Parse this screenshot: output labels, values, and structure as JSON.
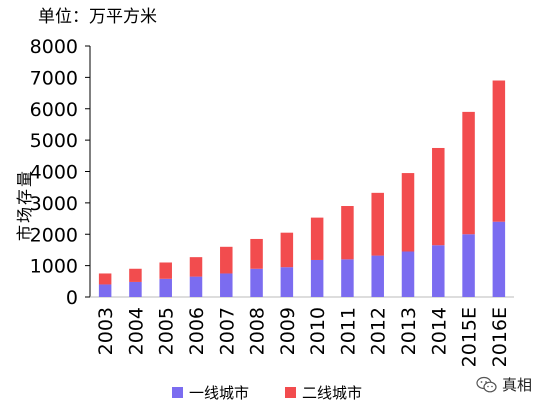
{
  "unit_label": "单位：万平方米",
  "watermark": {
    "text": "真相",
    "icon": "wechat-icon"
  },
  "chart_data": {
    "type": "bar",
    "stacked": true,
    "title": "",
    "xlabel": "",
    "ylabel": "市场存量",
    "ylim": [
      0,
      8000
    ],
    "yticks": [
      0,
      1000,
      2000,
      3000,
      4000,
      5000,
      6000,
      7000,
      8000
    ],
    "grid": false,
    "legend_position": "bottom",
    "categories": [
      "2003",
      "2004",
      "2005",
      "2006",
      "2007",
      "2008",
      "2009",
      "2010",
      "2011",
      "2012",
      "2013",
      "2014",
      "2015E",
      "2016E"
    ],
    "series": [
      {
        "name": "一线城市",
        "color": "#7b6cf0",
        "values": [
          400,
          480,
          580,
          650,
          750,
          900,
          950,
          1180,
          1200,
          1320,
          1450,
          1650,
          2000,
          2400
        ]
      },
      {
        "name": "二线城市",
        "color": "#f24c4e",
        "values": [
          350,
          420,
          520,
          620,
          850,
          950,
          1100,
          1350,
          1700,
          2000,
          2500,
          3100,
          3900,
          4500
        ]
      }
    ]
  }
}
